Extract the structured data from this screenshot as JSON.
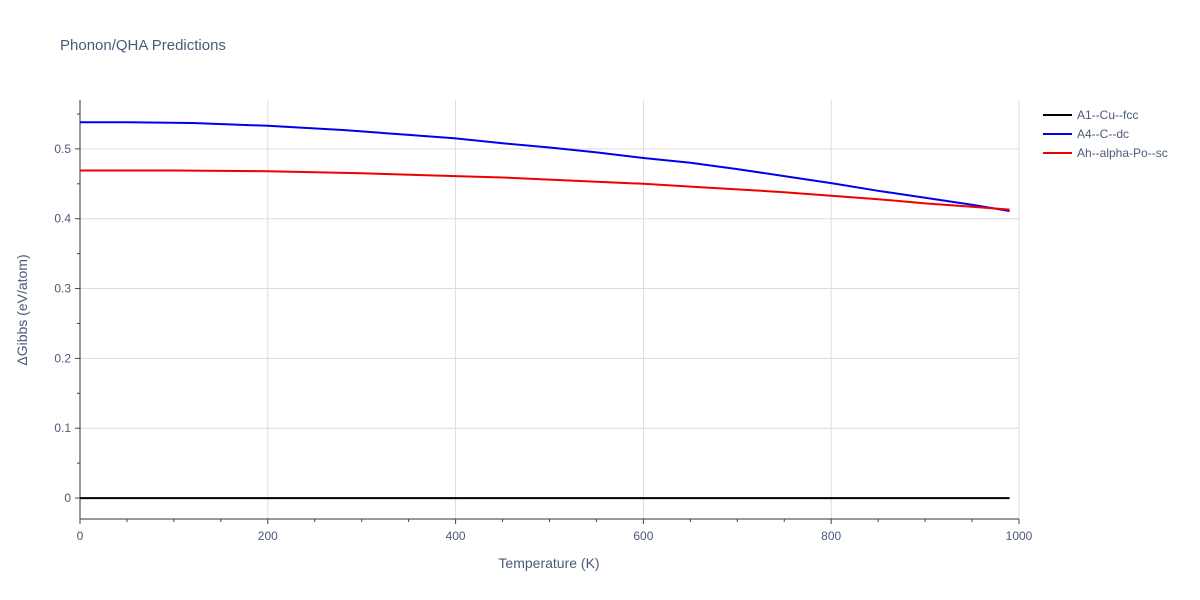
{
  "chart_data": {
    "type": "line",
    "title": "Phonon/QHA Predictions",
    "xlabel": "Temperature (K)",
    "ylabel": "ΔGibbs (eV/atom)",
    "xlim": [
      0,
      1000
    ],
    "ylim": [
      -0.03,
      0.57
    ],
    "xticks": [
      0,
      200,
      400,
      600,
      800,
      1000
    ],
    "yticks": [
      0,
      0.1,
      0.2,
      0.3,
      0.4,
      0.5
    ],
    "grid": true,
    "legend_position": "top-right",
    "series": [
      {
        "name": "A1--Cu--fcc",
        "color": "#000000",
        "x": [
          0,
          100,
          200,
          300,
          400,
          500,
          600,
          700,
          800,
          900,
          990
        ],
        "y": [
          0,
          0,
          0,
          0,
          0,
          0,
          0,
          0,
          0,
          0,
          0
        ]
      },
      {
        "name": "A4--C--dc",
        "color": "#0000ee",
        "x": [
          0,
          50,
          120,
          200,
          280,
          350,
          400,
          450,
          500,
          550,
          600,
          650,
          700,
          750,
          800,
          850,
          900,
          950,
          990
        ],
        "y": [
          0.538,
          0.538,
          0.537,
          0.533,
          0.527,
          0.52,
          0.515,
          0.508,
          0.502,
          0.495,
          0.487,
          0.48,
          0.471,
          0.461,
          0.451,
          0.44,
          0.43,
          0.42,
          0.411
        ]
      },
      {
        "name": "Ah--alpha-Po--sc",
        "color": "#ee0000",
        "x": [
          0,
          100,
          200,
          300,
          400,
          450,
          500,
          550,
          600,
          650,
          700,
          750,
          800,
          850,
          900,
          950,
          990
        ],
        "y": [
          0.469,
          0.469,
          0.468,
          0.465,
          0.461,
          0.459,
          0.456,
          0.453,
          0.45,
          0.446,
          0.442,
          0.438,
          0.433,
          0.428,
          0.422,
          0.417,
          0.413
        ]
      }
    ]
  }
}
